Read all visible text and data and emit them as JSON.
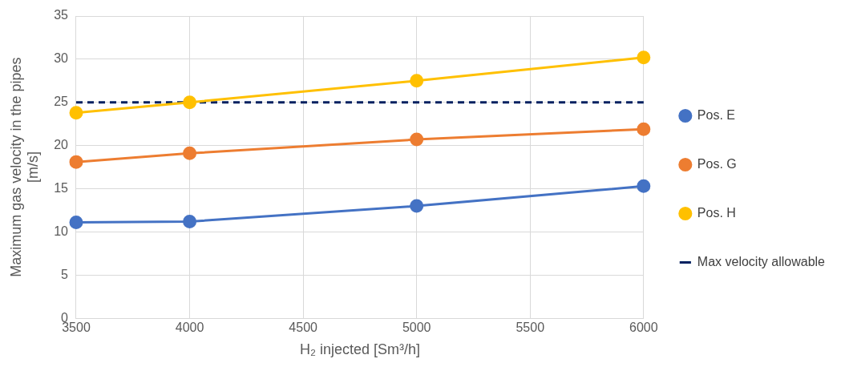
{
  "chart_data": {
    "type": "line",
    "xlabel": "H₂ injected [Sm³/h]",
    "ylabel": "Maximum gas velocity in the pipes [m/s]",
    "x": [
      3500,
      4000,
      5000,
      6000
    ],
    "series": [
      {
        "name": "Pos. E",
        "color": "#4472c4",
        "values": [
          11.1,
          11.2,
          13.0,
          15.3
        ],
        "marker": "circle",
        "line_style": "solid"
      },
      {
        "name": "Pos. G",
        "color": "#ed7d31",
        "values": [
          18.1,
          19.1,
          20.7,
          21.9
        ],
        "marker": "circle",
        "line_style": "solid"
      },
      {
        "name": "Pos. H",
        "color": "#ffc000",
        "values": [
          23.8,
          25.0,
          27.5,
          30.2
        ],
        "marker": "circle",
        "line_style": "solid"
      },
      {
        "name": "Max velocity allowable",
        "color": "#002060",
        "x": [
          3500,
          6000
        ],
        "values": [
          25,
          25
        ],
        "marker": "none",
        "line_style": "dashed"
      }
    ],
    "xlim": [
      3500,
      6000
    ],
    "xticks": [
      3500,
      4000,
      4500,
      5000,
      5500,
      6000
    ],
    "ylim": [
      0,
      35
    ],
    "yticks": [
      0,
      5,
      10,
      15,
      20,
      25,
      30,
      35
    ],
    "grid": true,
    "legend": "right"
  }
}
